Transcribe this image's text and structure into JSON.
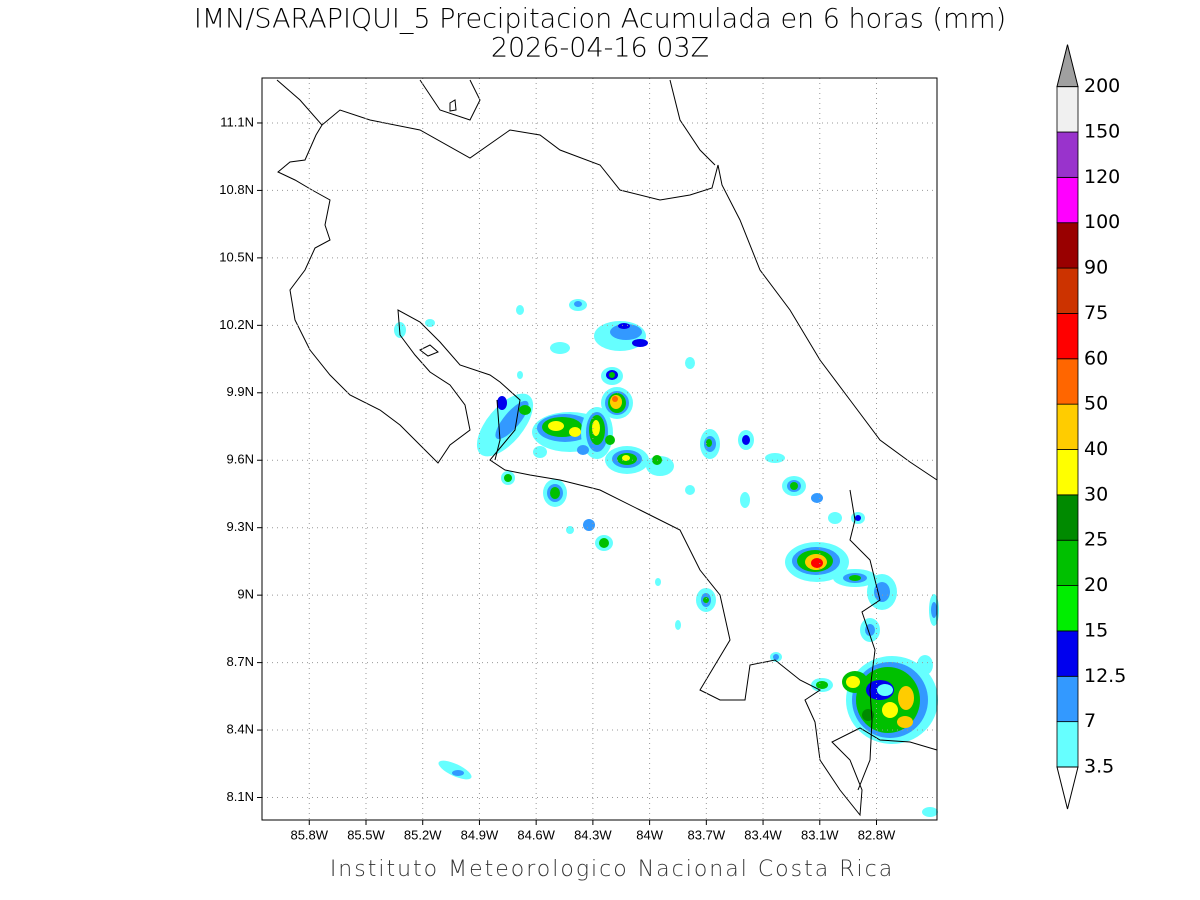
{
  "title": [
    "IMN/SARAPIQUI_5 Precipitacion Acumulada en 6 horas (mm)",
    "2026-04-16 03Z"
  ],
  "map": {
    "lonlim": [
      -86.05,
      -82.48
    ],
    "latlim": [
      8.0,
      11.3
    ],
    "grid": true,
    "lon_ticks": [
      {
        "value": -85.8,
        "label": "85.8W"
      },
      {
        "value": -85.5,
        "label": "85.5W"
      },
      {
        "value": -85.2,
        "label": "85.2W"
      },
      {
        "value": -84.9,
        "label": "84.9W"
      },
      {
        "value": -84.6,
        "label": "84.6W"
      },
      {
        "value": -84.3,
        "label": "84.3W"
      },
      {
        "value": -84,
        "label": "84W"
      },
      {
        "value": -83.7,
        "label": "83.7W"
      },
      {
        "value": -83.4,
        "label": "83.4W"
      },
      {
        "value": -83.1,
        "label": "83.1W"
      },
      {
        "value": -82.8,
        "label": "82.8W"
      }
    ],
    "lat_ticks": [
      {
        "value": 8.1,
        "label": "8.1N"
      },
      {
        "value": 8.4,
        "label": "8.4N"
      },
      {
        "value": 8.7,
        "label": "8.7N"
      },
      {
        "value": 9,
        "label": "9N"
      },
      {
        "value": 9.3,
        "label": "9.3N"
      },
      {
        "value": 9.6,
        "label": "9.6N"
      },
      {
        "value": 9.9,
        "label": "9.9N"
      },
      {
        "value": 10.2,
        "label": "10.2N"
      },
      {
        "value": 10.5,
        "label": "10.5N"
      },
      {
        "value": 10.8,
        "label": "10.8N"
      },
      {
        "value": 11.1,
        "label": "11.1N"
      }
    ]
  },
  "colorbar": {
    "levels": [
      3.5,
      7,
      12.5,
      15,
      20,
      25,
      30,
      40,
      50,
      60,
      75,
      90,
      100,
      120,
      150,
      200
    ],
    "colors": [
      "#66ffff",
      "#3399ff",
      "#0000ee",
      "#00ee00",
      "#00c000",
      "#008a00",
      "#ffff00",
      "#ffcc00",
      "#ff6600",
      "#ff0000",
      "#cc3300",
      "#990000",
      "#ff00ff",
      "#9933cc",
      "#f0f0f0"
    ],
    "under_color": "#ffffff",
    "over_color": "#a0a0a0"
  },
  "footer": "Instituto Meteorologico Nacional Costa Rica"
}
